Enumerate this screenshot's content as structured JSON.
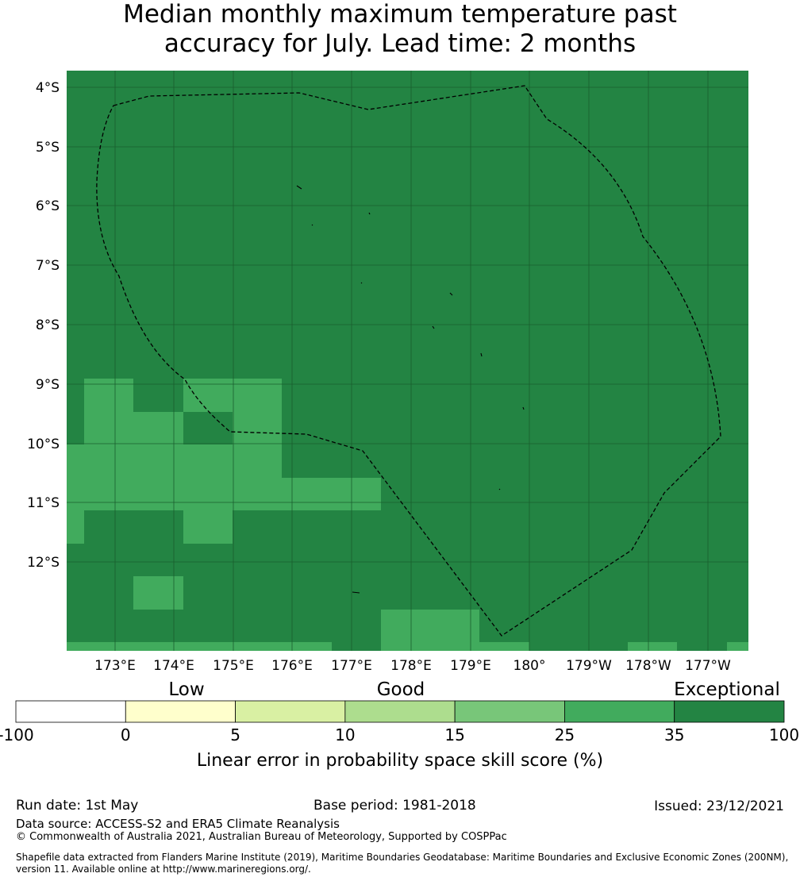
{
  "title": {
    "line1": "Median monthly maximum temperature past",
    "line2": "accuracy for July. Lead time: 2 months"
  },
  "map": {
    "lat_labels": [
      "4°S",
      "5°S",
      "6°S",
      "7°S",
      "8°S",
      "9°S",
      "10°S",
      "11°S",
      "12°S"
    ],
    "lon_labels": [
      "173°E",
      "174°E",
      "175°E",
      "176°E",
      "177°E",
      "178°E",
      "179°E",
      "180°",
      "179°W",
      "178°W",
      "177°W"
    ],
    "colors": {
      "exceptional_35_100": "#238443",
      "band_25_35": "#41ab5d",
      "gridline": "#1a5e2e",
      "boundary": "#000000"
    },
    "boundary_style": "dashed",
    "grid": "on"
  },
  "legend": {
    "category_labels": [
      "Low",
      "Good",
      "Exceptional"
    ],
    "tick_labels": [
      "-100",
      "0",
      "5",
      "10",
      "15",
      "25",
      "35",
      "100"
    ],
    "bin_colors": [
      "#ffffff",
      "#ffffcc",
      "#d9f0a3",
      "#addd8e",
      "#78c679",
      "#41ab5d",
      "#238443"
    ],
    "axis_label": "Linear error in probability space skill score (%)"
  },
  "footer": {
    "run_date": "Run date: 1st May",
    "base_period": "Base period: 1981-2018",
    "issued": "Issued: 23/12/2021",
    "data_source": "Data source: ACCESS-S2 and ERA5 Climate Reanalysis",
    "copyright": "© Commonwealth of Australia 2021, Australian Bureau of Meteorology, Supported by COSPPac",
    "shapefile_line1": "Shapefile data extracted from Flanders Marine Institute (2019), Maritime Boundaries Geodatabase: Maritime Boundaries and Exclusive Economic Zones (200NM),",
    "shapefile_line2": "version 11. Available online at http://www.marineregions.org/."
  }
}
